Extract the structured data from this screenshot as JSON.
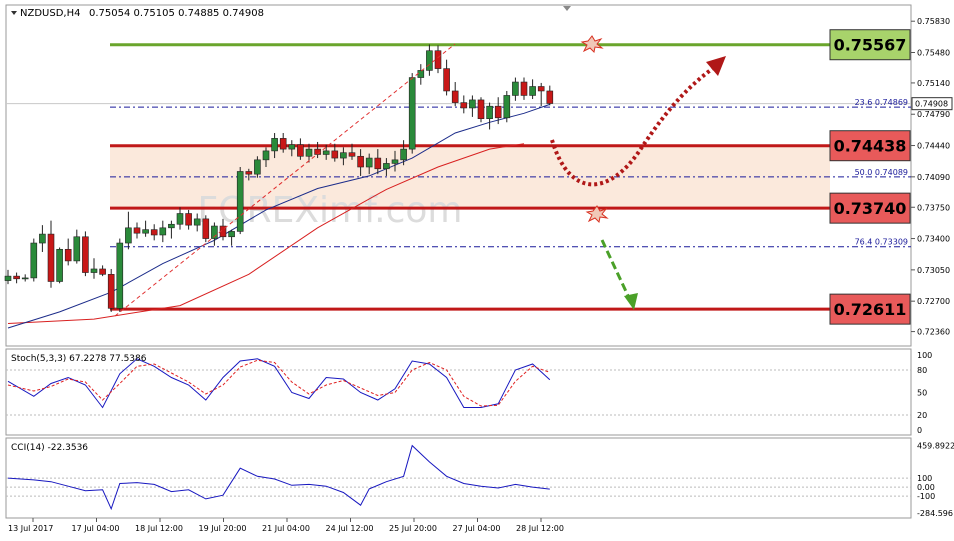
{
  "header": {
    "symbol": "NZDUSD,H4",
    "ohlc": "0.75054 0.75105 0.74885 0.74908"
  },
  "watermark": "FOREXimf.com",
  "chart_data": {
    "type": "candlestick",
    "price_axis": {
      "ticks": [
        "0.75830",
        "0.75480",
        "0.75140",
        "0.74790",
        "0.74440",
        "0.74090",
        "0.73750",
        "0.73400",
        "0.73050",
        "0.72700",
        "0.72360"
      ],
      "range": [
        0.7221,
        0.76
      ],
      "current_price_label": "0.74908"
    },
    "time_axis": {
      "labels": [
        "13 Jul 2017",
        "17 Jul 04:00",
        "18 Jul 12:00",
        "19 Jul 20:00",
        "21 Jul 04:00",
        "24 Jul 12:00",
        "25 Jul 20:00",
        "27 Jul 04:00",
        "28 Jul 12:00"
      ]
    },
    "candles": [
      [
        0.7293,
        0.7305,
        0.7289,
        0.7298
      ],
      [
        0.7298,
        0.7302,
        0.729,
        0.7295
      ],
      [
        0.7295,
        0.73,
        0.7292,
        0.7296
      ],
      [
        0.7296,
        0.734,
        0.7292,
        0.7335
      ],
      [
        0.7335,
        0.7355,
        0.7325,
        0.7345
      ],
      [
        0.7345,
        0.736,
        0.7285,
        0.7292
      ],
      [
        0.7292,
        0.733,
        0.729,
        0.7328
      ],
      [
        0.7328,
        0.734,
        0.731,
        0.7315
      ],
      [
        0.7315,
        0.735,
        0.7312,
        0.7342
      ],
      [
        0.7342,
        0.7348,
        0.7298,
        0.7302
      ],
      [
        0.7302,
        0.7318,
        0.7295,
        0.7306
      ],
      [
        0.7306,
        0.731,
        0.7298,
        0.73
      ],
      [
        0.73,
        0.7306,
        0.7258,
        0.7262
      ],
      [
        0.7262,
        0.734,
        0.7258,
        0.7335
      ],
      [
        0.7335,
        0.737,
        0.7328,
        0.7352
      ],
      [
        0.7352,
        0.7358,
        0.734,
        0.7346
      ],
      [
        0.7346,
        0.736,
        0.7342,
        0.735
      ],
      [
        0.735,
        0.7356,
        0.7338,
        0.7344
      ],
      [
        0.7344,
        0.736,
        0.7336,
        0.7352
      ],
      [
        0.7352,
        0.736,
        0.734,
        0.7356
      ],
      [
        0.7356,
        0.7375,
        0.735,
        0.7368
      ],
      [
        0.7368,
        0.7372,
        0.735,
        0.7355
      ],
      [
        0.7355,
        0.7368,
        0.7348,
        0.7362
      ],
      [
        0.7362,
        0.7366,
        0.7336,
        0.734
      ],
      [
        0.734,
        0.7358,
        0.7332,
        0.7354
      ],
      [
        0.7354,
        0.7362,
        0.7338,
        0.7342
      ],
      [
        0.7342,
        0.735,
        0.7332,
        0.7348
      ],
      [
        0.7348,
        0.742,
        0.7345,
        0.7415
      ],
      [
        0.7415,
        0.7418,
        0.7405,
        0.7412
      ],
      [
        0.7412,
        0.7432,
        0.7408,
        0.7428
      ],
      [
        0.7428,
        0.7442,
        0.742,
        0.7438
      ],
      [
        0.7438,
        0.7458,
        0.743,
        0.7452
      ],
      [
        0.7452,
        0.7458,
        0.7436,
        0.744
      ],
      [
        0.744,
        0.745,
        0.7432,
        0.7445
      ],
      [
        0.7445,
        0.7452,
        0.7428,
        0.7432
      ],
      [
        0.7432,
        0.7446,
        0.7425,
        0.744
      ],
      [
        0.744,
        0.7448,
        0.743,
        0.7434
      ],
      [
        0.7434,
        0.7445,
        0.7428,
        0.7438
      ],
      [
        0.7438,
        0.7446,
        0.7426,
        0.743
      ],
      [
        0.743,
        0.7442,
        0.7422,
        0.7436
      ],
      [
        0.7436,
        0.7446,
        0.7428,
        0.7432
      ],
      [
        0.7432,
        0.744,
        0.741,
        0.742
      ],
      [
        0.742,
        0.7435,
        0.7412,
        0.743
      ],
      [
        0.743,
        0.744,
        0.7412,
        0.7418
      ],
      [
        0.7418,
        0.743,
        0.741,
        0.7424
      ],
      [
        0.7424,
        0.7438,
        0.7415,
        0.7428
      ],
      [
        0.7428,
        0.745,
        0.7422,
        0.744
      ],
      [
        0.744,
        0.7525,
        0.7435,
        0.752
      ],
      [
        0.752,
        0.7535,
        0.7512,
        0.7528
      ],
      [
        0.7528,
        0.7557,
        0.7522,
        0.755
      ],
      [
        0.755,
        0.7556,
        0.7525,
        0.753
      ],
      [
        0.753,
        0.754,
        0.75,
        0.7505
      ],
      [
        0.7505,
        0.7515,
        0.7488,
        0.7492
      ],
      [
        0.7492,
        0.75,
        0.748,
        0.7486
      ],
      [
        0.7486,
        0.75,
        0.7476,
        0.7495
      ],
      [
        0.7495,
        0.7498,
        0.747,
        0.7474
      ],
      [
        0.7474,
        0.7492,
        0.7462,
        0.7488
      ],
      [
        0.7488,
        0.7498,
        0.7468,
        0.7475
      ],
      [
        0.7475,
        0.7505,
        0.747,
        0.75
      ],
      [
        0.75,
        0.752,
        0.7494,
        0.7515
      ],
      [
        0.7515,
        0.752,
        0.7495,
        0.75
      ],
      [
        0.75,
        0.7518,
        0.7496,
        0.751
      ],
      [
        0.751,
        0.7514,
        0.7488,
        0.7505
      ],
      [
        0.7505,
        0.7511,
        0.7489,
        0.7491
      ]
    ],
    "ema_fast": [
      [
        0,
        0.724
      ],
      [
        6,
        0.7258
      ],
      [
        12,
        0.728
      ],
      [
        18,
        0.7312
      ],
      [
        24,
        0.7338
      ],
      [
        30,
        0.7372
      ],
      [
        36,
        0.7396
      ],
      [
        42,
        0.741
      ],
      [
        47,
        0.743
      ],
      [
        52,
        0.7458
      ],
      [
        56,
        0.747
      ],
      [
        60,
        0.748
      ],
      [
        63,
        0.749
      ]
    ],
    "ema_slow": [
      [
        0,
        0.7245
      ],
      [
        10,
        0.725
      ],
      [
        20,
        0.7265
      ],
      [
        28,
        0.73
      ],
      [
        36,
        0.7352
      ],
      [
        44,
        0.7395
      ],
      [
        50,
        0.742
      ],
      [
        56,
        0.744
      ],
      [
        60,
        0.7446
      ]
    ],
    "levels": [
      {
        "price": 0.75567,
        "label": "0.75567",
        "color": "#6aa52c",
        "box_fill": "#a8d36b"
      },
      {
        "price": 0.74438,
        "label": "0.74438",
        "color": "#c01818",
        "box_fill": "#e85a5a"
      },
      {
        "price": 0.7374,
        "label": "0.73740",
        "color": "#c01818",
        "box_fill": "#e85a5a"
      },
      {
        "price": 0.72611,
        "label": "0.72611",
        "color": "#c01818",
        "box_fill": "#e85a5a"
      }
    ],
    "fibonacci": [
      {
        "price": 0.74869,
        "label": "23.6   0.74869"
      },
      {
        "price": 0.74089,
        "label": "50.0   0.74089"
      },
      {
        "price": 0.73309,
        "label": "76.4   0.73309"
      }
    ],
    "zone": [
      0.74438,
      0.7374
    ],
    "stochastic": {
      "label": "Stoch(5,3,3) 67.2278 77.5386",
      "range": [
        0,
        100
      ],
      "ticks": [
        "100",
        "80",
        "50",
        "20",
        "0"
      ],
      "main": [
        [
          0,
          65
        ],
        [
          3,
          45
        ],
        [
          5,
          62
        ],
        [
          7,
          70
        ],
        [
          9,
          60
        ],
        [
          11,
          30
        ],
        [
          13,
          75
        ],
        [
          15,
          95
        ],
        [
          17,
          85
        ],
        [
          19,
          70
        ],
        [
          21,
          60
        ],
        [
          23,
          40
        ],
        [
          25,
          70
        ],
        [
          27,
          92
        ],
        [
          29,
          95
        ],
        [
          31,
          85
        ],
        [
          33,
          50
        ],
        [
          35,
          42
        ],
        [
          37,
          70
        ],
        [
          39,
          68
        ],
        [
          41,
          50
        ],
        [
          43,
          40
        ],
        [
          45,
          55
        ],
        [
          47,
          92
        ],
        [
          49,
          88
        ],
        [
          51,
          70
        ],
        [
          53,
          30
        ],
        [
          55,
          30
        ],
        [
          57,
          35
        ],
        [
          59,
          80
        ],
        [
          61,
          88
        ],
        [
          63,
          67
        ]
      ],
      "signal": [
        [
          0,
          60
        ],
        [
          3,
          52
        ],
        [
          5,
          58
        ],
        [
          7,
          68
        ],
        [
          9,
          64
        ],
        [
          11,
          40
        ],
        [
          13,
          62
        ],
        [
          15,
          85
        ],
        [
          17,
          88
        ],
        [
          19,
          76
        ],
        [
          21,
          64
        ],
        [
          23,
          48
        ],
        [
          25,
          60
        ],
        [
          27,
          84
        ],
        [
          29,
          93
        ],
        [
          31,
          90
        ],
        [
          33,
          64
        ],
        [
          35,
          48
        ],
        [
          37,
          60
        ],
        [
          39,
          66
        ],
        [
          41,
          56
        ],
        [
          43,
          46
        ],
        [
          45,
          50
        ],
        [
          47,
          80
        ],
        [
          49,
          90
        ],
        [
          51,
          80
        ],
        [
          53,
          45
        ],
        [
          55,
          32
        ],
        [
          57,
          33
        ],
        [
          59,
          65
        ],
        [
          61,
          85
        ],
        [
          63,
          77
        ]
      ]
    },
    "cci": {
      "label": "CCI(14) -22.3536",
      "range": [
        -320,
        500
      ],
      "ticks": [
        "459.8922",
        "100",
        "0.00",
        "-100",
        "-284.596"
      ],
      "values": [
        [
          0,
          100
        ],
        [
          3,
          80
        ],
        [
          5,
          60
        ],
        [
          7,
          10
        ],
        [
          9,
          -40
        ],
        [
          11,
          -30
        ],
        [
          12,
          -240
        ],
        [
          13,
          40
        ],
        [
          15,
          50
        ],
        [
          17,
          30
        ],
        [
          19,
          -50
        ],
        [
          21,
          -30
        ],
        [
          23,
          -130
        ],
        [
          25,
          -90
        ],
        [
          27,
          210
        ],
        [
          29,
          120
        ],
        [
          31,
          90
        ],
        [
          33,
          20
        ],
        [
          35,
          30
        ],
        [
          37,
          10
        ],
        [
          39,
          -60
        ],
        [
          41,
          -200
        ],
        [
          42,
          -20
        ],
        [
          44,
          60
        ],
        [
          46,
          120
        ],
        [
          47,
          460
        ],
        [
          49,
          280
        ],
        [
          51,
          120
        ],
        [
          53,
          40
        ],
        [
          55,
          10
        ],
        [
          57,
          -10
        ],
        [
          59,
          30
        ],
        [
          61,
          0
        ],
        [
          63,
          -22
        ]
      ]
    }
  }
}
